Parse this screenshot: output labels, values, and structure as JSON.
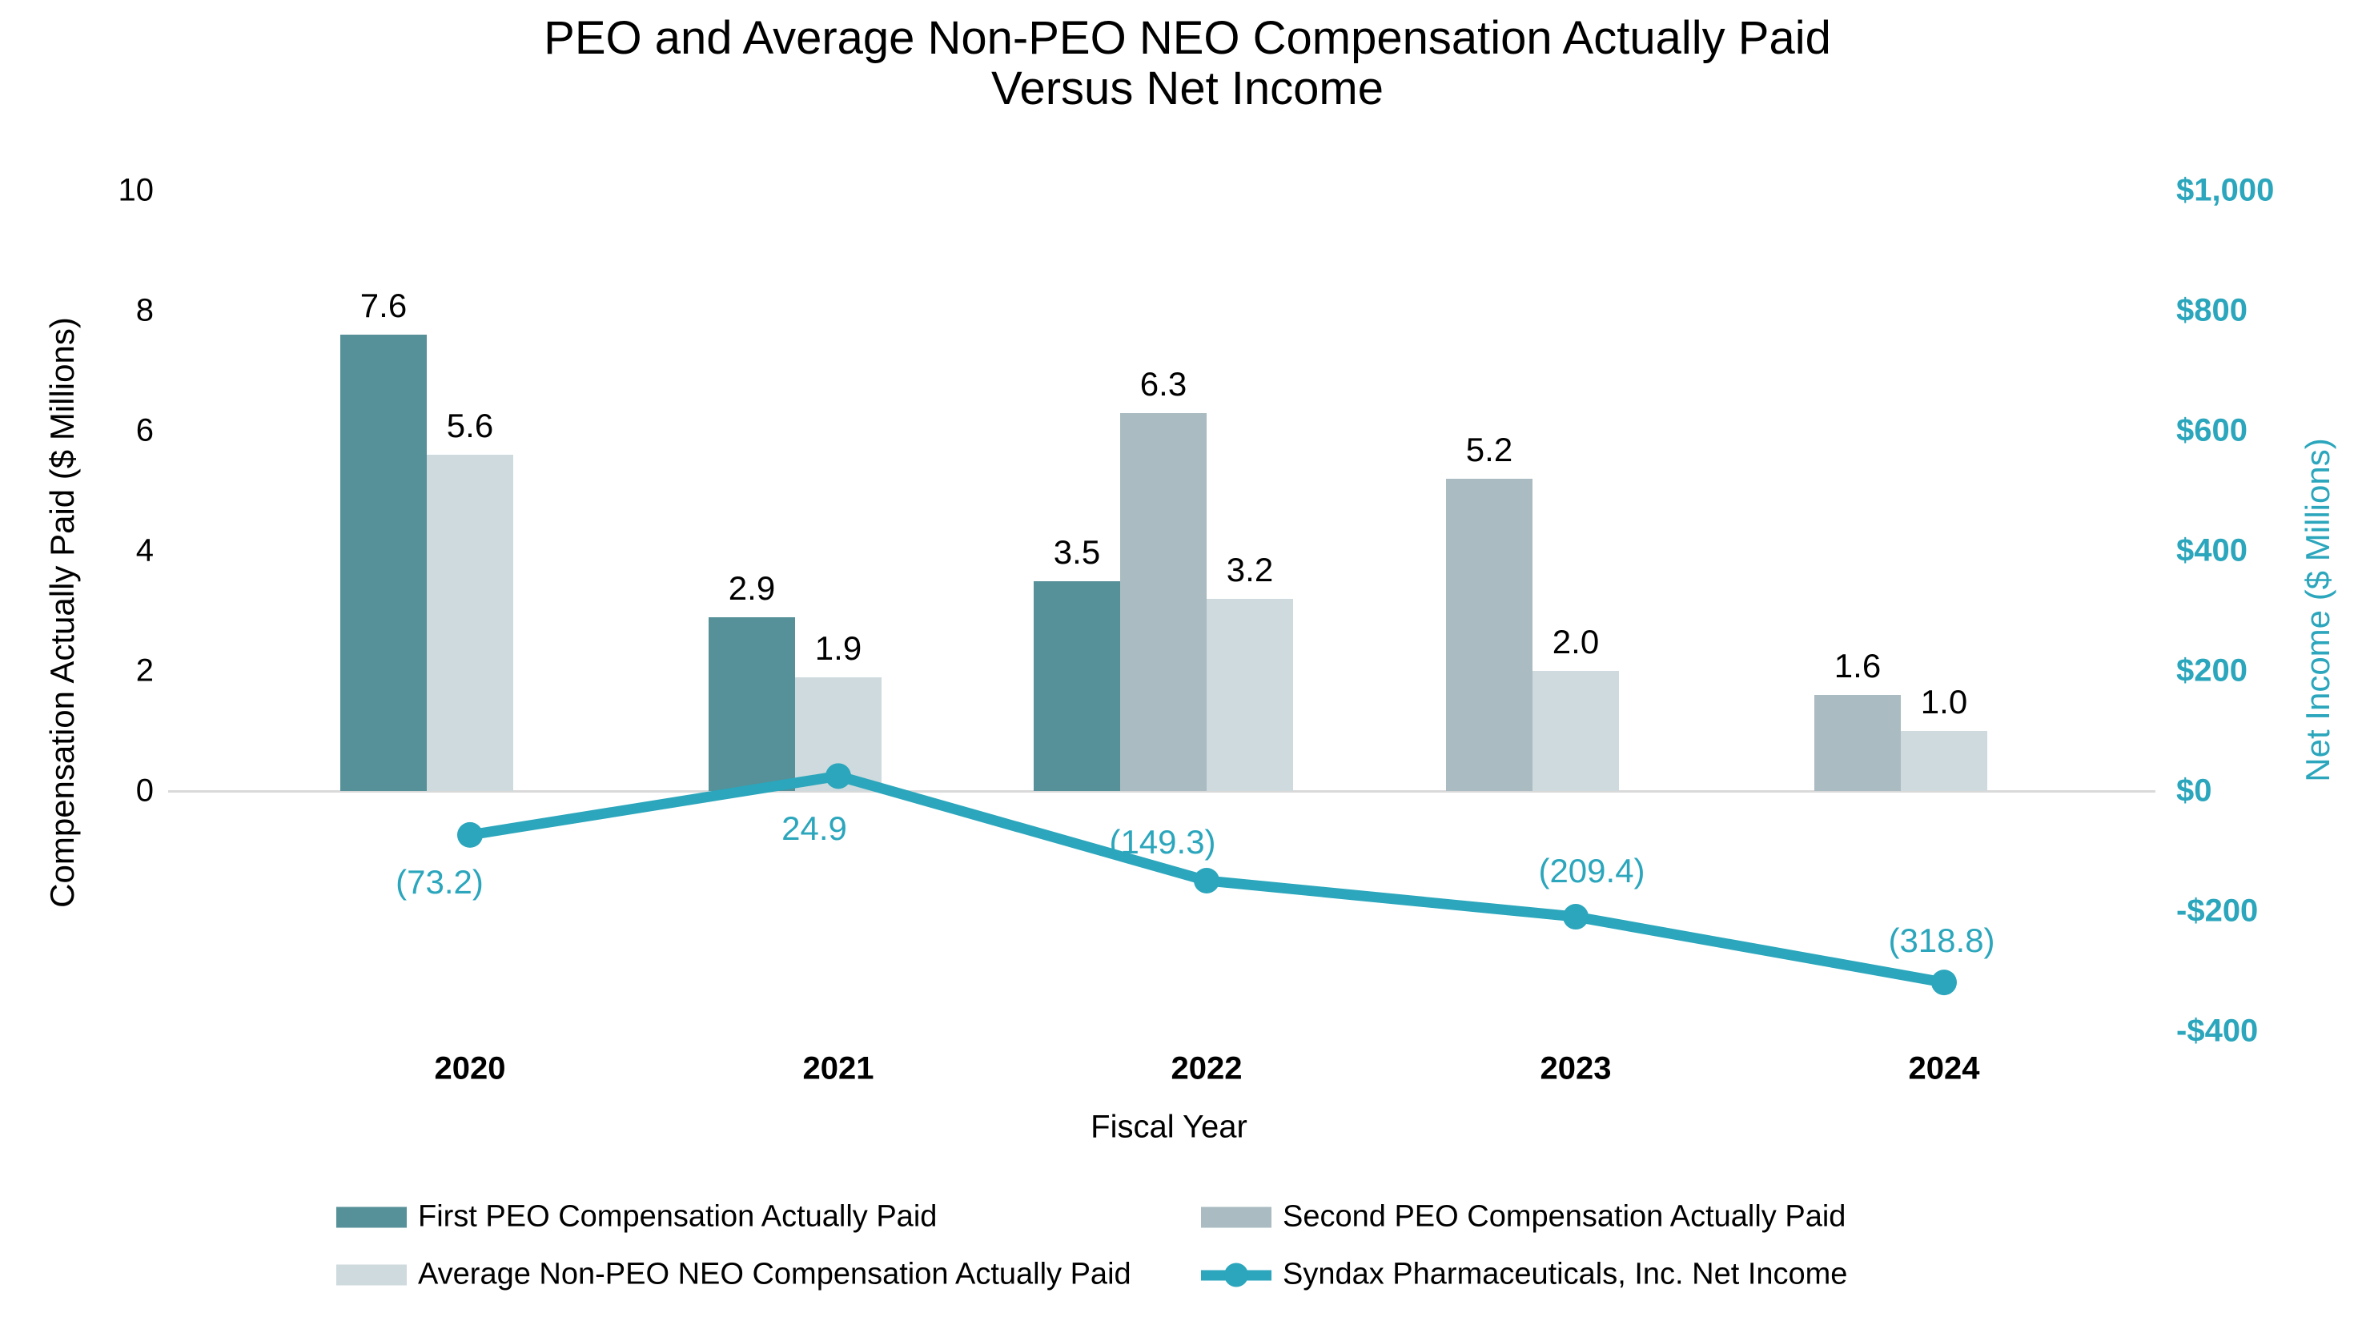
{
  "title": {
    "line1": "PEO and Average Non-PEO NEO Compensation Actually Paid",
    "line2": "Versus Net Income"
  },
  "left_axis": {
    "title": "Compensation Actually Paid ($ Millions)",
    "tick_labels": [
      "10",
      "8",
      "6",
      "4",
      "2",
      "0"
    ],
    "tick_values": [
      10,
      8,
      6,
      4,
      2,
      0
    ],
    "range": [
      0,
      10
    ]
  },
  "right_axis": {
    "title": "Net Income ($ Millions)",
    "tick_labels": [
      "$1,000",
      "$800",
      "$600",
      "$400",
      "$200",
      "$0",
      "-$200",
      "-$400"
    ],
    "tick_values": [
      1000,
      800,
      600,
      400,
      200,
      0,
      -200,
      -400
    ],
    "range": [
      -400,
      1000
    ]
  },
  "x_axis": {
    "title": "Fiscal Year",
    "categories": [
      "2020",
      "2021",
      "2022",
      "2023",
      "2024"
    ]
  },
  "colors": {
    "first_peo": "#569098",
    "second_peo": "#AABBC1",
    "avg_neo": "#CEDADE",
    "net_income": "#2BA6BC",
    "gridline": "#D9D9D9",
    "text": "#000000"
  },
  "chart_data": {
    "type": "bar+line",
    "title": "PEO and Average Non-PEO NEO Compensation Actually Paid Versus Net Income",
    "categories": [
      "2020",
      "2021",
      "2022",
      "2023",
      "2024"
    ],
    "left_ylim": [
      0,
      10
    ],
    "right_ylim": [
      -400,
      1000
    ],
    "grid": "zero-line-only",
    "legend_position": "bottom",
    "series": [
      {
        "key": "first_peo",
        "name": "First PEO Compensation Actually Paid",
        "type": "bar",
        "axis": "left",
        "values": [
          7.6,
          2.9,
          3.5,
          null,
          null
        ],
        "data_labels": [
          "7.6",
          "2.9",
          "3.5",
          null,
          null
        ]
      },
      {
        "key": "second_peo",
        "name": "Second PEO Compensation Actually Paid",
        "type": "bar",
        "axis": "left",
        "values": [
          null,
          null,
          6.3,
          5.2,
          1.6
        ],
        "data_labels": [
          null,
          null,
          "6.3",
          "5.2",
          "1.6"
        ]
      },
      {
        "key": "avg_neo",
        "name": "Average Non-PEO NEO Compensation Actually Paid",
        "type": "bar",
        "axis": "left",
        "values": [
          5.6,
          1.9,
          3.2,
          2.0,
          1.0
        ],
        "data_labels": [
          "5.6",
          "1.9",
          "3.2",
          "2.0",
          "1.0"
        ]
      },
      {
        "key": "net_income",
        "name": "Syndax Pharmaceuticals, Inc. Net Income",
        "type": "line",
        "axis": "right",
        "values": [
          -73.2,
          24.9,
          -149.3,
          -209.4,
          -318.8
        ],
        "data_labels": [
          "(73.2)",
          "24.9",
          "(149.3)",
          "(209.4)",
          "(318.8)"
        ],
        "label_positions": [
          "below",
          "below",
          "above",
          "above",
          "above"
        ]
      }
    ]
  },
  "legend": {
    "items": [
      {
        "key": "first_peo",
        "swatch": "rect",
        "label": "First PEO Compensation Actually Paid"
      },
      {
        "key": "second_peo",
        "swatch": "rect",
        "label": "Second PEO Compensation Actually Paid"
      },
      {
        "key": "avg_neo",
        "swatch": "rect",
        "label": "Average Non-PEO NEO Compensation Actually Paid"
      },
      {
        "key": "net_income",
        "swatch": "line",
        "label": "Syndax Pharmaceuticals, Inc. Net Income"
      }
    ]
  }
}
